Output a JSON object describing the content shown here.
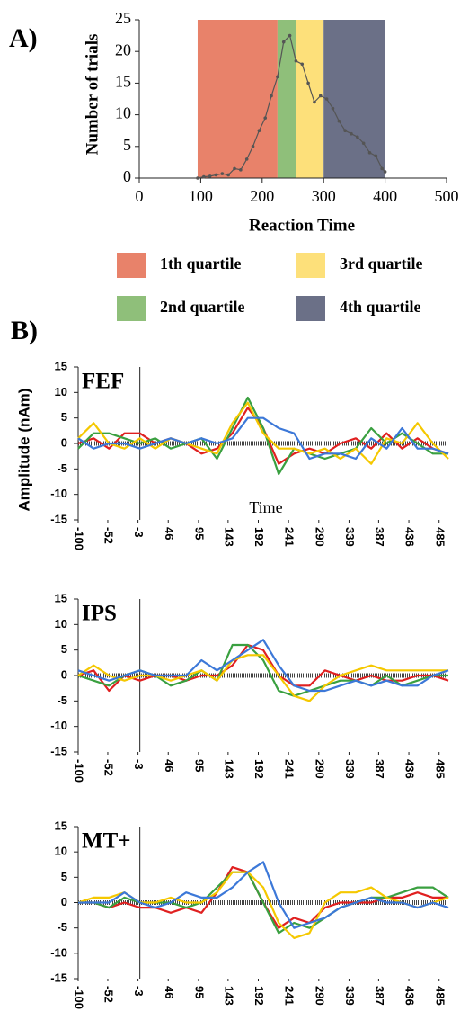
{
  "chart_data": [
    {
      "type": "line",
      "panel_label": "A)",
      "ylabel": "Number of trials",
      "xlabel": "Reaction Time",
      "xlim": [
        0,
        500
      ],
      "xticks": [
        0,
        100,
        200,
        300,
        400,
        500
      ],
      "ylim": [
        0,
        25
      ],
      "yticks": [
        0,
        5,
        10,
        15,
        20,
        25
      ],
      "regions": [
        {
          "name": "1th quartile",
          "color": "#e8826a",
          "range": [
            95,
            225
          ]
        },
        {
          "name": "2nd quartile",
          "color": "#8fbf7a",
          "range": [
            225,
            255
          ]
        },
        {
          "name": "3rd quartile",
          "color": "#fde07a",
          "range": [
            255,
            300
          ]
        },
        {
          "name": "4th quartile",
          "color": "#6b7087",
          "range": [
            300,
            400
          ]
        }
      ],
      "x": [
        95,
        105,
        115,
        125,
        135,
        145,
        155,
        165,
        175,
        185,
        195,
        205,
        215,
        225,
        235,
        245,
        255,
        265,
        275,
        285,
        295,
        305,
        315,
        325,
        335,
        345,
        355,
        365,
        375,
        385,
        395,
        400
      ],
      "series": [
        {
          "color": "#555555",
          "values": [
            0,
            0.2,
            0.3,
            0.5,
            0.7,
            0.5,
            1.5,
            1.3,
            3,
            5,
            7.5,
            9.5,
            13,
            16,
            21.5,
            22.5,
            18.5,
            18,
            15,
            12,
            13,
            12.5,
            11,
            9,
            7.5,
            7,
            6.5,
            5.5,
            4,
            3.5,
            1.5,
            1
          ]
        }
      ]
    },
    {
      "type": "line",
      "panel_label": "B)",
      "title": "FEF",
      "ylabel": "Amplitude (nAm)",
      "xlabel": "Time",
      "xlim": [
        -100,
        500
      ],
      "xticks": [
        -100,
        -52,
        -3,
        46,
        95,
        143,
        192,
        241,
        290,
        339,
        387,
        436,
        485
      ],
      "ylim": [
        -15,
        15
      ],
      "yticks": [
        -15,
        -10,
        -5,
        0,
        5,
        10,
        15
      ],
      "x": [
        -100,
        -75,
        -50,
        -25,
        0,
        25,
        50,
        75,
        100,
        125,
        150,
        175,
        200,
        225,
        250,
        275,
        300,
        325,
        350,
        375,
        400,
        425,
        450,
        475,
        500
      ],
      "series": [
        {
          "color": "#e02020",
          "values": [
            0,
            1,
            -1,
            2,
            2,
            0,
            1,
            0,
            -2,
            -1,
            2,
            7,
            3,
            -4,
            -2,
            -1,
            -2,
            0,
            1,
            -1,
            2,
            -1,
            1,
            -1,
            -2
          ]
        },
        {
          "color": "#3aa040",
          "values": [
            -1,
            2,
            2,
            1,
            0,
            1,
            -1,
            0,
            1,
            -3,
            3,
            9,
            3,
            -6,
            -1,
            -2,
            -3,
            -2,
            -1,
            3,
            0,
            2,
            0,
            -2,
            -2
          ]
        },
        {
          "color": "#f5c800",
          "values": [
            1,
            4,
            0,
            -1,
            1,
            -1,
            1,
            0,
            -1,
            -2,
            4,
            8,
            2,
            -1,
            -1,
            -2,
            -1,
            -3,
            -1,
            -4,
            1,
            0,
            4,
            0,
            -3
          ]
        },
        {
          "color": "#3c78d8",
          "values": [
            1,
            -1,
            0,
            0,
            -1,
            0,
            1,
            0,
            1,
            0,
            1,
            5,
            5,
            3,
            2,
            -3,
            -2,
            -2,
            -3,
            1,
            -1,
            3,
            -1,
            -1,
            -2
          ]
        }
      ]
    },
    {
      "type": "line",
      "title": "IPS",
      "xlim": [
        -100,
        500
      ],
      "xticks": [
        -100,
        -52,
        -3,
        46,
        95,
        143,
        192,
        241,
        290,
        339,
        387,
        436,
        485
      ],
      "ylim": [
        -15,
        15
      ],
      "yticks": [
        -15,
        -10,
        -5,
        0,
        5,
        10,
        15
      ],
      "x": [
        -100,
        -75,
        -50,
        -25,
        0,
        25,
        50,
        75,
        100,
        125,
        150,
        175,
        200,
        225,
        250,
        275,
        300,
        325,
        350,
        375,
        400,
        425,
        450,
        475,
        500
      ],
      "series": [
        {
          "color": "#e02020",
          "values": [
            0,
            1,
            -3,
            0,
            -1,
            0,
            0,
            -1,
            0,
            0,
            2,
            6,
            5,
            0,
            -2,
            -2,
            1,
            0,
            -1,
            0,
            -1,
            -1,
            0,
            0,
            -1
          ]
        },
        {
          "color": "#3aa040",
          "values": [
            0,
            -1,
            -2,
            0,
            1,
            0,
            -2,
            -1,
            1,
            -1,
            6,
            6,
            3,
            -3,
            -4,
            -3,
            -2,
            -1,
            -1,
            -2,
            0,
            -2,
            -1,
            0,
            0
          ]
        },
        {
          "color": "#f5c800",
          "values": [
            0,
            2,
            0,
            -1,
            0,
            0,
            -1,
            0,
            1,
            -1,
            3,
            4,
            4,
            0,
            -4,
            -5,
            -2,
            0,
            1,
            2,
            1,
            1,
            1,
            1,
            1
          ]
        },
        {
          "color": "#3c78d8",
          "values": [
            1,
            0,
            -1,
            0,
            1,
            0,
            0,
            0,
            3,
            1,
            3,
            5,
            7,
            2,
            -2,
            -3,
            -3,
            -2,
            -1,
            -2,
            -1,
            -2,
            -2,
            0,
            1
          ]
        }
      ]
    },
    {
      "type": "line",
      "title": "MT+",
      "xlim": [
        -100,
        500
      ],
      "xticks": [
        -100,
        -52,
        -3,
        46,
        95,
        143,
        192,
        241,
        290,
        339,
        387,
        436,
        485
      ],
      "ylim": [
        -15,
        15
      ],
      "yticks": [
        -15,
        -10,
        -5,
        0,
        5,
        10,
        15
      ],
      "x": [
        -100,
        -75,
        -50,
        -25,
        0,
        25,
        50,
        75,
        100,
        125,
        150,
        175,
        200,
        225,
        250,
        275,
        300,
        325,
        350,
        375,
        400,
        425,
        450,
        475,
        500
      ],
      "series": [
        {
          "color": "#e02020",
          "values": [
            0,
            0,
            -1,
            0,
            -1,
            -1,
            -2,
            -1,
            -2,
            2,
            7,
            6,
            0,
            -5,
            -3,
            -4,
            -1,
            0,
            0,
            0,
            1,
            1,
            2,
            1,
            1
          ]
        },
        {
          "color": "#3aa040",
          "values": [
            0,
            0,
            -1,
            1,
            0,
            0,
            0,
            -1,
            0,
            3,
            6,
            6,
            0,
            -6,
            -4,
            -5,
            -3,
            -1,
            0,
            1,
            1,
            2,
            3,
            3,
            1
          ]
        },
        {
          "color": "#f5c800",
          "values": [
            0,
            1,
            1,
            2,
            0,
            0,
            1,
            0,
            0,
            2,
            6,
            6,
            3,
            -4,
            -7,
            -6,
            0,
            2,
            2,
            3,
            1,
            0,
            -1,
            0,
            1
          ]
        },
        {
          "color": "#3c78d8",
          "values": [
            0,
            0,
            0,
            2,
            0,
            -1,
            0,
            2,
            1,
            1,
            3,
            6,
            8,
            0,
            -5,
            -4,
            -3,
            -1,
            0,
            1,
            0,
            0,
            -1,
            0,
            -1
          ]
        }
      ]
    }
  ]
}
